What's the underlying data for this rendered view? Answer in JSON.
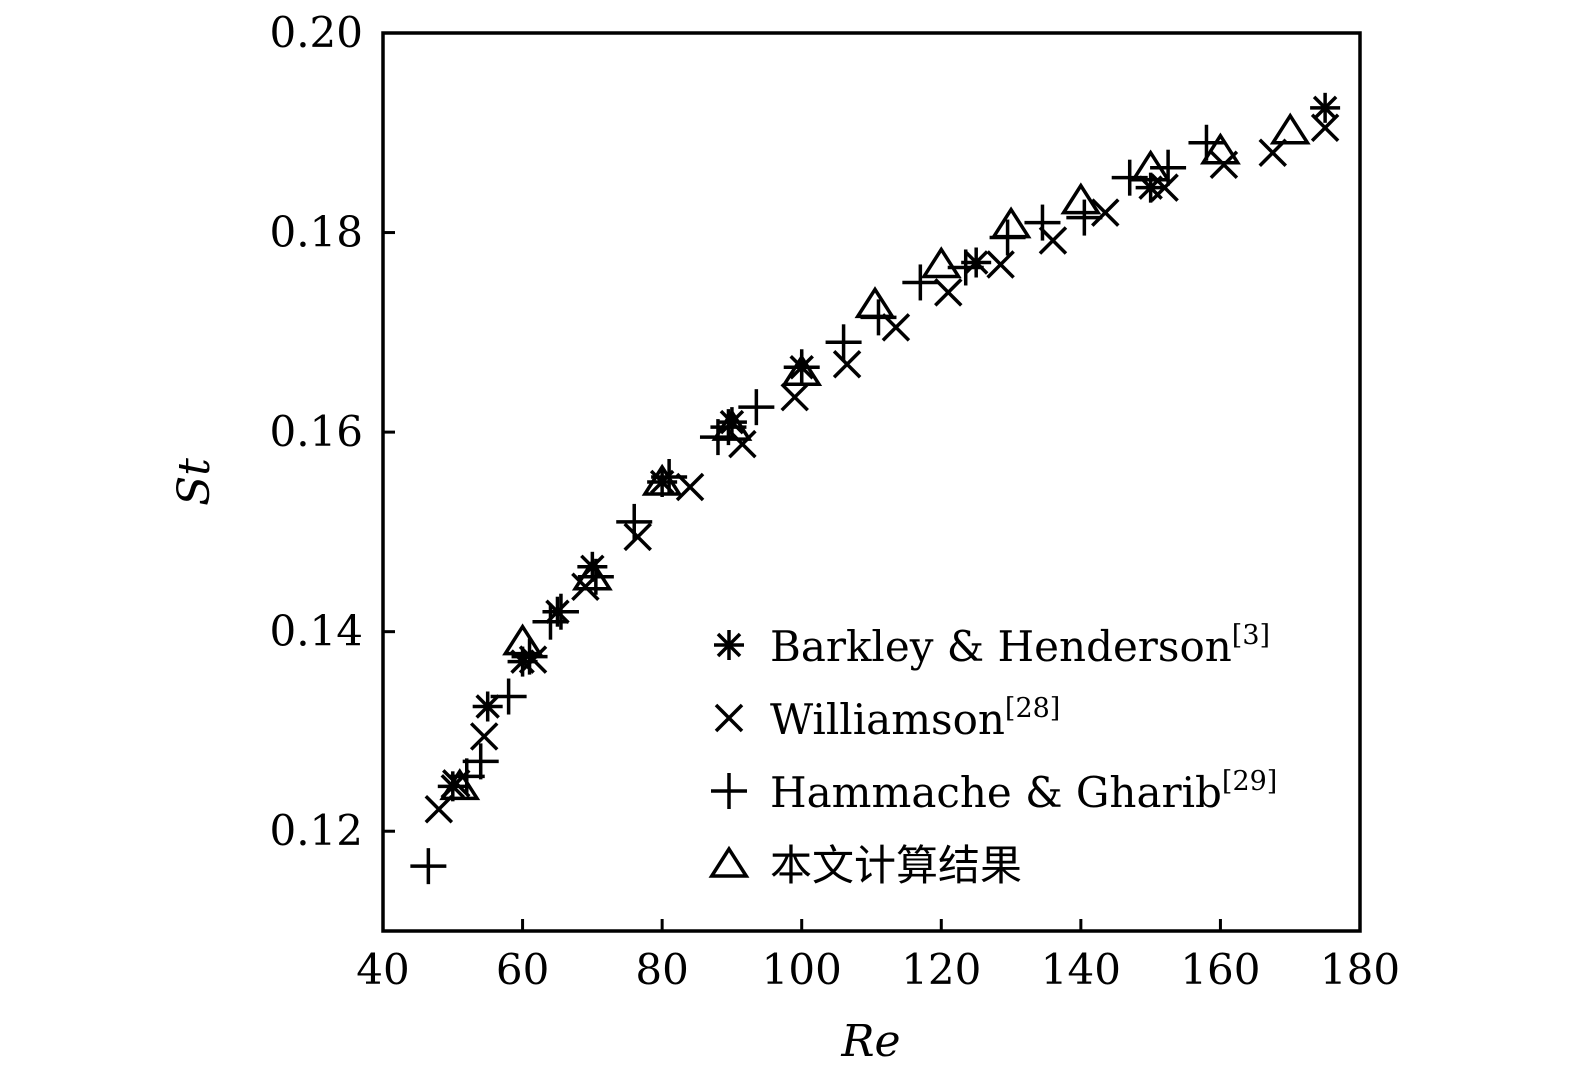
{
  "chart_data": {
    "type": "scatter",
    "xlabel": "Re",
    "ylabel": "St",
    "xlim": [
      40,
      180
    ],
    "ylim": [
      0.11,
      0.2
    ],
    "x_ticks": [
      40,
      60,
      80,
      100,
      120,
      140,
      160,
      180
    ],
    "y_ticks": [
      0.12,
      0.14,
      0.16,
      0.18,
      0.2
    ],
    "x_tick_labels": [
      "40",
      "60",
      "80",
      "100",
      "120",
      "140",
      "160",
      "180"
    ],
    "y_tick_labels": [
      "0.12",
      "0.14",
      "0.16",
      "0.18",
      "0.20"
    ],
    "grid": false,
    "legend_position": "lower-right",
    "series": [
      {
        "name": "Barkley & Henderson",
        "ref": "[3]",
        "marker": "asterisk",
        "points": [
          [
            50,
            0.1245
          ],
          [
            55,
            0.1325
          ],
          [
            60,
            0.137
          ],
          [
            65,
            0.142
          ],
          [
            70,
            0.1465
          ],
          [
            80,
            0.155
          ],
          [
            90,
            0.161
          ],
          [
            100,
            0.1665
          ],
          [
            125,
            0.177
          ],
          [
            150,
            0.1845
          ],
          [
            175,
            0.1925
          ]
        ]
      },
      {
        "name": "Williamson",
        "ref": "[28]",
        "marker": "cross",
        "points": [
          [
            48,
            0.1222
          ],
          [
            50.5,
            0.1248
          ],
          [
            54.5,
            0.1295
          ],
          [
            61.5,
            0.1372
          ],
          [
            69,
            0.1445
          ],
          [
            76.5,
            0.1495
          ],
          [
            84,
            0.1545
          ],
          [
            91.5,
            0.1588
          ],
          [
            99,
            0.1635
          ],
          [
            106.5,
            0.1668
          ],
          [
            113.5,
            0.1705
          ],
          [
            121,
            0.174
          ],
          [
            128.5,
            0.1768
          ],
          [
            136,
            0.1792
          ],
          [
            143.5,
            0.182
          ],
          [
            152,
            0.1845
          ],
          [
            160.5,
            0.1868
          ],
          [
            167.5,
            0.188
          ],
          [
            175,
            0.1905
          ]
        ]
      },
      {
        "name": "Hammache & Gharib",
        "ref": "[29]",
        "marker": "plus",
        "points": [
          [
            46.5,
            0.1165
          ],
          [
            52,
            0.1255
          ],
          [
            54,
            0.127
          ],
          [
            58,
            0.1335
          ],
          [
            61,
            0.1375
          ],
          [
            64,
            0.141
          ],
          [
            65.5,
            0.142
          ],
          [
            70.5,
            0.1455
          ],
          [
            76,
            0.151
          ],
          [
            81,
            0.1555
          ],
          [
            88,
            0.1595
          ],
          [
            89.5,
            0.1605
          ],
          [
            93.5,
            0.1625
          ],
          [
            100,
            0.1665
          ],
          [
            106,
            0.169
          ],
          [
            111,
            0.1715
          ],
          [
            117,
            0.175
          ],
          [
            123.5,
            0.1765
          ],
          [
            129.5,
            0.1795
          ],
          [
            134.5,
            0.181
          ],
          [
            140.5,
            0.1815
          ],
          [
            147,
            0.1855
          ],
          [
            152.5,
            0.1865
          ],
          [
            158,
            0.189
          ]
        ]
      },
      {
        "name": "本文计算结果",
        "ref": "",
        "marker": "triangle",
        "points": [
          [
            51,
            0.1245
          ],
          [
            60,
            0.139
          ],
          [
            70,
            0.1455
          ],
          [
            80,
            0.155
          ],
          [
            90,
            0.1605
          ],
          [
            100,
            0.166
          ],
          [
            110.5,
            0.1728
          ],
          [
            120,
            0.1768
          ],
          [
            130,
            0.1808
          ],
          [
            140,
            0.1832
          ],
          [
            150,
            0.1865
          ],
          [
            160,
            0.1882
          ],
          [
            170,
            0.1902
          ]
        ]
      }
    ]
  }
}
